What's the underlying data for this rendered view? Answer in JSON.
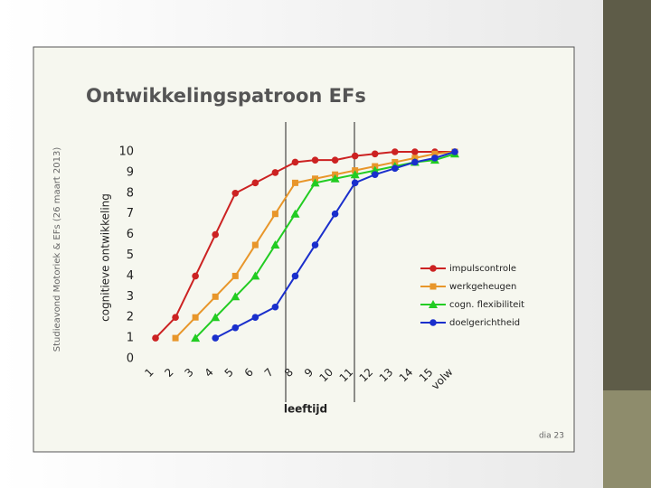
{
  "slide": {
    "side_text": "Studieavond Motoriek & EFs (26 maart 2013)",
    "footer": "dia 23"
  },
  "chart_data": {
    "type": "line",
    "title": "Ontwikkelingspatroon EFs",
    "x_label": "leeftijd",
    "y_label": "cognitieve ontwikkeling",
    "categories": [
      "1",
      "2",
      "3",
      "4",
      "5",
      "6",
      "7",
      "8",
      "9",
      "10",
      "11",
      "12",
      "13",
      "14",
      "15",
      "volw"
    ],
    "series": [
      {
        "name": "impulscontrole",
        "color": "#cc2222",
        "marker": "circle",
        "values": [
          1,
          2,
          4,
          6,
          8,
          8.5,
          9,
          9.5,
          9.6,
          9.6,
          9.8,
          9.9,
          10,
          10,
          10,
          10
        ]
      },
      {
        "name": "werkgeheugen",
        "color": "#e8962a",
        "marker": "square",
        "values": [
          null,
          1,
          2,
          3,
          4,
          5.5,
          7,
          8.5,
          8.7,
          8.9,
          9.1,
          9.3,
          9.5,
          9.7,
          9.9,
          10
        ]
      },
      {
        "name": "cogn. flexibiliteit",
        "color": "#22cc22",
        "marker": "triangle",
        "values": [
          null,
          null,
          1,
          2,
          3,
          4,
          5.5,
          7,
          8.5,
          8.7,
          8.9,
          9.1,
          9.3,
          9.5,
          9.6,
          9.9
        ]
      },
      {
        "name": "doelgerichtheid",
        "color": "#1a2fcc",
        "marker": "circle",
        "values": [
          null,
          null,
          null,
          1,
          1.5,
          2,
          2.5,
          4,
          5.5,
          7,
          8.5,
          8.9,
          9.2,
          9.5,
          9.7,
          10
        ]
      }
    ],
    "ylim": [
      0,
      10
    ],
    "yticks": [
      0,
      1,
      2,
      3,
      4,
      5,
      6,
      7,
      8,
      9,
      10
    ],
    "legend": "right",
    "grid": false
  }
}
